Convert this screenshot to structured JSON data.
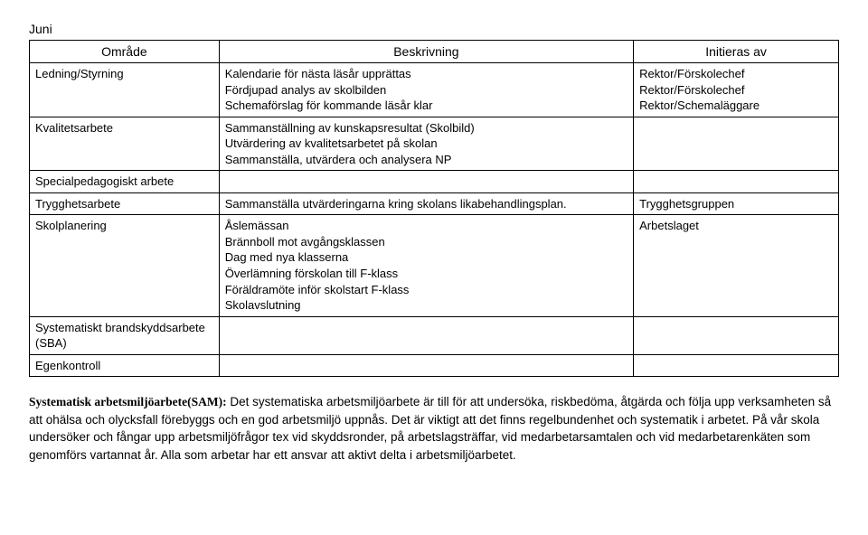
{
  "month": "Juni",
  "headers": {
    "col1": "Område",
    "col2": "Beskrivning",
    "col3": "Initieras av"
  },
  "rows": [
    {
      "col1": [
        "Ledning/Styrning"
      ],
      "col2": [
        "Kalendarie för nästa läsår upprättas",
        "Fördjupad analys av skolbilden",
        "Schemaförslag för kommande läsår klar"
      ],
      "col3": [
        "Rektor/Förskolechef",
        "Rektor/Förskolechef",
        "Rektor/Schemaläggare"
      ]
    },
    {
      "col1": [
        "Kvalitetsarbete"
      ],
      "col2": [
        "Sammanställning av kunskapsresultat (Skolbild)",
        "Utvärdering av kvalitetsarbetet på skolan",
        "Sammanställa, utvärdera och analysera NP"
      ],
      "col3": []
    },
    {
      "col1": [
        "Specialpedagogiskt arbete"
      ],
      "col2": [],
      "col3": []
    },
    {
      "col1": [
        "Trygghetsarbete"
      ],
      "col2": [
        "Sammanställa utvärderingarna kring skolans likabehandlingsplan."
      ],
      "col3": [
        "Trygghetsgruppen"
      ]
    },
    {
      "col1": [
        "Skolplanering"
      ],
      "col2": [
        "Åslemässan",
        "Brännboll mot avgångsklassen",
        "Dag med nya klasserna",
        "Överlämning förskolan till F-klass",
        "Föräldramöte inför skolstart F-klass",
        "Skolavslutning"
      ],
      "col3": [
        "Arbetslaget"
      ]
    },
    {
      "col1": [
        "Systematiskt brandskyddsarbete (SBA)"
      ],
      "col2": [],
      "col3": []
    },
    {
      "col1": [
        "Egenkontroll"
      ],
      "col2": [],
      "col3": []
    }
  ],
  "footer": {
    "bold_label": "Systematisk arbetsmiljöarbete(SAM):",
    "text": " Det systematiska arbetsmiljöarbete är till för att undersöka, riskbedöma, åtgärda och följa upp verksamheten så att ohälsa och olycksfall förebyggs och en god arbetsmiljö uppnås. Det är viktigt att det finns regelbundenhet och systematik i arbetet. På vår skola undersöker och fångar upp arbetsmiljöfrågor tex vid skyddsronder, på arbetslagsträffar, vid medarbetarsamtalen och vid medarbetarenkäten som genomförs vartannat år. Alla som arbetar har ett ansvar att aktivt delta i arbetsmiljöarbetet."
  }
}
